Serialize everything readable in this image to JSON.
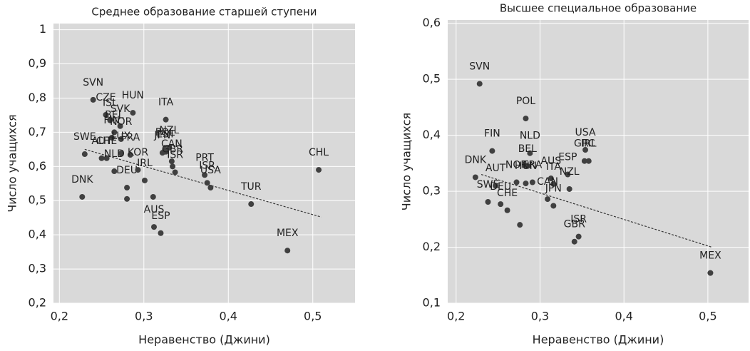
{
  "chart_data": [
    {
      "type": "scatter",
      "title": "Среднее образование старшей ступени",
      "xlabel": "Неравенство (Джини)",
      "ylabel": "Число учащихся",
      "xlim": [
        0.193,
        0.55
      ],
      "ylim": [
        0.2,
        1.018
      ],
      "xticks": [
        {
          "value": 0.2,
          "label": "0,2"
        },
        {
          "value": 0.3,
          "label": "0,3"
        },
        {
          "value": 0.4,
          "label": "0,4"
        },
        {
          "value": 0.5,
          "label": "0,5"
        }
      ],
      "yticks": [
        {
          "value": 0.2,
          "label": "0,2"
        },
        {
          "value": 0.3,
          "label": "0,3"
        },
        {
          "value": 0.4,
          "label": "0,4"
        },
        {
          "value": 0.5,
          "label": "0,5"
        },
        {
          "value": 0.6,
          "label": "0,6"
        },
        {
          "value": 0.7,
          "label": "0,7"
        },
        {
          "value": 0.8,
          "label": "0,8"
        },
        {
          "value": 0.9,
          "label": "0,9"
        },
        1
      ],
      "grid": true,
      "color": "#404040",
      "labels": [
        "SVN",
        "CZE",
        "HUN",
        "ISL",
        "SVK",
        "BEL",
        "ITA",
        "SWE",
        "FIN",
        "NOR",
        "FRA",
        "AUT",
        "LUX",
        "CHE",
        "NLD",
        "DEU",
        null,
        "DNK",
        "KOR",
        "IRL",
        null,
        "AUS",
        "ESP",
        "POL",
        "EST",
        "JPN",
        "NZL",
        "CAN",
        "GBR",
        "ISR",
        "PRT",
        "ISR",
        "USA",
        "TUR",
        "CHL",
        "MEX"
      ],
      "x": [
        0.24,
        0.255,
        0.287,
        0.26,
        0.272,
        0.265,
        0.326,
        0.23,
        0.262,
        0.273,
        0.284,
        0.25,
        0.273,
        0.256,
        0.265,
        0.28,
        0.28,
        0.227,
        0.293,
        0.301,
        0.311,
        0.312,
        0.32,
        0.325,
        0.326,
        0.322,
        0.33,
        0.333,
        0.334,
        0.337,
        0.372,
        0.375,
        0.379,
        0.427,
        0.507,
        0.47
      ],
      "y": [
        0.795,
        0.751,
        0.757,
        0.735,
        0.718,
        0.7,
        0.737,
        0.636,
        0.684,
        0.68,
        0.634,
        0.624,
        0.638,
        0.624,
        0.586,
        0.538,
        0.505,
        0.511,
        0.59,
        0.559,
        0.511,
        0.423,
        0.405,
        0.649,
        0.643,
        0.64,
        0.655,
        0.615,
        0.6,
        0.583,
        0.575,
        0.552,
        0.538,
        0.49,
        0.59,
        0.354
      ],
      "trend": {
        "x": [
          0.23,
          0.51
        ],
        "y": [
          0.65,
          0.452
        ]
      }
    },
    {
      "type": "scatter",
      "title": "Высшее специальное образование",
      "xlabel": "Неравенство (Джини)",
      "ylabel": "Число учащихся",
      "xlim": [
        0.19,
        0.5485
      ],
      "ylim": [
        0.1,
        0.606
      ],
      "xticks": [
        {
          "value": 0.2,
          "label": "0,2"
        },
        {
          "value": 0.3,
          "label": "0,3"
        },
        {
          "value": 0.4,
          "label": "0,4"
        },
        {
          "value": 0.5,
          "label": "0,5"
        }
      ],
      "yticks": [
        {
          "value": 0.1,
          "label": "0,1"
        },
        {
          "value": 0.2,
          "label": "0,2"
        },
        {
          "value": 0.3,
          "label": "0,3"
        },
        {
          "value": 0.4,
          "label": "0,4"
        },
        {
          "value": 0.5,
          "label": "0,5"
        },
        {
          "value": 0.6,
          "label": "0,6"
        }
      ],
      "grid": true,
      "color": "#404040",
      "labels": [
        "SVN",
        "POL",
        "FIN",
        "NLD",
        "BEL",
        "USA",
        "GRC",
        "IRL",
        "ESP",
        "NZL",
        "AUS",
        "ITA",
        "ISR",
        "GBR",
        "DNK",
        "SWE",
        "AUT",
        "DEU",
        "CHE",
        null,
        "NOR",
        "HUN",
        "FRA",
        "CAN",
        "JPN",
        "MEX"
      ],
      "x": [
        0.228,
        0.283,
        0.243,
        0.288,
        0.285,
        0.354,
        0.353,
        0.358,
        0.333,
        0.335,
        0.313,
        0.316,
        0.346,
        0.341,
        0.223,
        0.238,
        0.247,
        0.253,
        0.261,
        0.276,
        0.272,
        0.283,
        0.291,
        0.309,
        0.316,
        0.503
      ],
      "y": [
        0.492,
        0.43,
        0.372,
        0.368,
        0.345,
        0.374,
        0.354,
        0.354,
        0.33,
        0.304,
        0.323,
        0.313,
        0.219,
        0.21,
        0.325,
        0.281,
        0.31,
        0.277,
        0.266,
        0.24,
        0.316,
        0.314,
        0.316,
        0.286,
        0.274,
        0.154
      ],
      "trend": {
        "x": [
          0.23,
          0.505
        ],
        "y": [
          0.33,
          0.2
        ]
      }
    }
  ]
}
